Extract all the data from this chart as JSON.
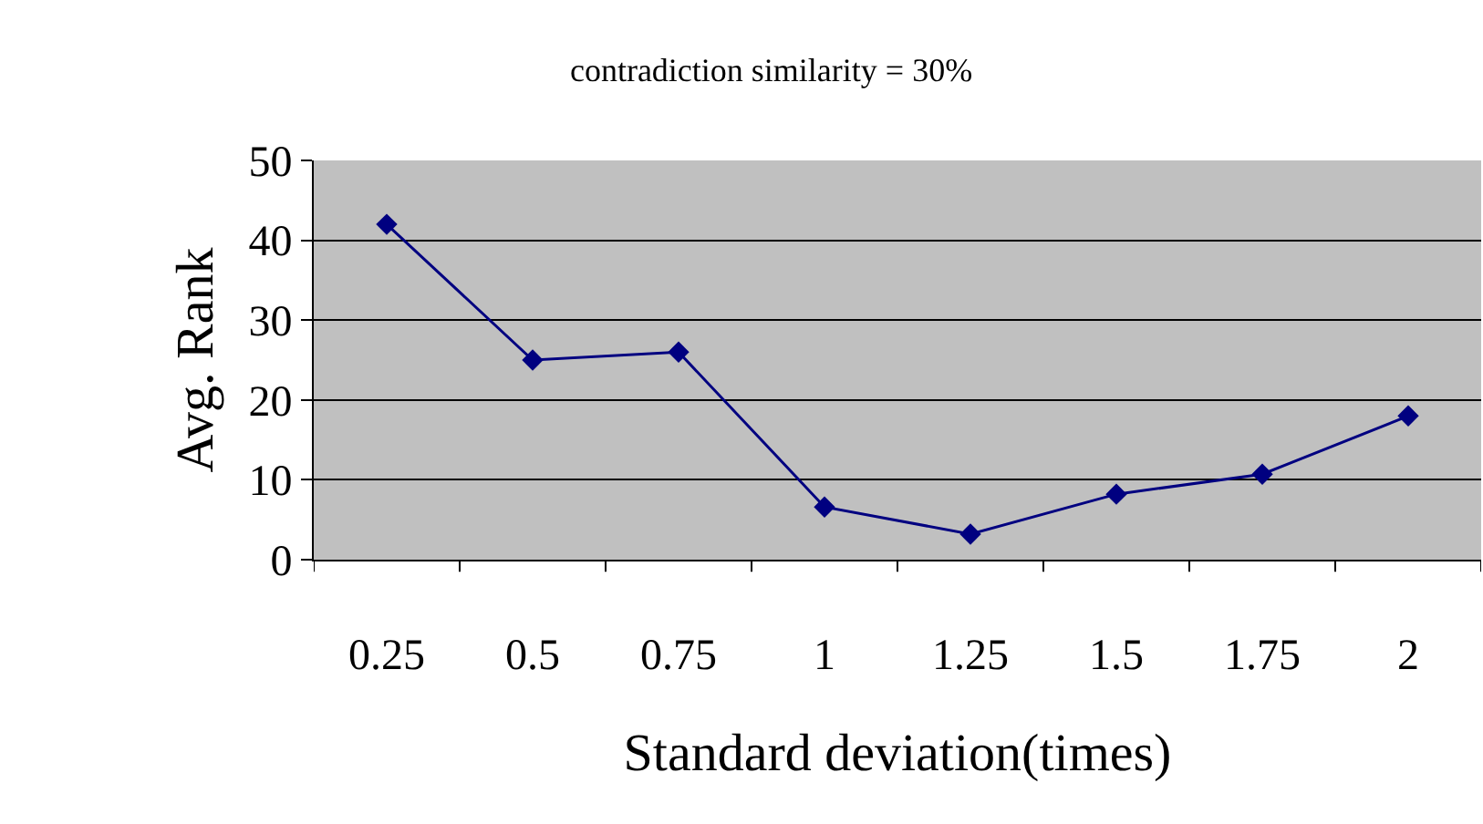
{
  "chart_data": {
    "type": "line",
    "title": "contradiction similarity = 30%",
    "xlabel": "Standard deviation(times)",
    "ylabel": "Avg. Rank",
    "categories": [
      "0.25",
      "0.5",
      "0.75",
      "1",
      "1.25",
      "1.5",
      "1.75",
      "2"
    ],
    "series": [
      {
        "color": "#000080",
        "values": [
          42,
          25,
          26,
          6.6,
          3.2,
          8.2,
          10.7,
          18
        ]
      }
    ],
    "ylim": [
      0,
      50
    ],
    "yticks": [
      0,
      10,
      20,
      30,
      40,
      50
    ],
    "grid": "y",
    "legend": false,
    "marker": "diamond",
    "line_style": "solid"
  }
}
